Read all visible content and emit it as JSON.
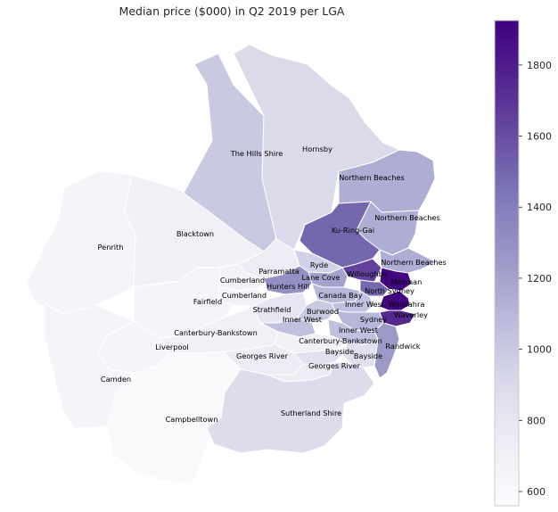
{
  "title": "Median price ($000) in Q2 2019 per LGA",
  "colorbar": {
    "min": 560,
    "max": 1925,
    "ticks": [
      "600",
      "800",
      "1000",
      "1200",
      "1400",
      "1600",
      "1800"
    ],
    "colormap": [
      "#fcfbfd",
      "#efedf5",
      "#dadaeb",
      "#bcbddc",
      "#9e9ac8",
      "#807dba",
      "#6a51a3",
      "#54278f",
      "#3f007d"
    ]
  },
  "regions": [
    {
      "name": "The Hills Shire",
      "value": 1000
    },
    {
      "name": "Hornsby",
      "value": 900
    },
    {
      "name": "Northern Beaches",
      "value": 1150
    },
    {
      "name": "Northern Beaches",
      "value": 1150
    },
    {
      "name": "Ku-Ring-Gai",
      "value": 1500
    },
    {
      "name": "Northern Beaches",
      "value": 1150
    },
    {
      "name": "Penrith",
      "value": 650
    },
    {
      "name": "Blacktown",
      "value": 700
    },
    {
      "name": "Parramatta",
      "value": 750
    },
    {
      "name": "Ryde",
      "value": 950
    },
    {
      "name": "Willoughby",
      "value": 1650
    },
    {
      "name": "Cumberland",
      "value": 680
    },
    {
      "name": "Lane Cove",
      "value": 1200
    },
    {
      "name": "Mosman",
      "value": 1900
    },
    {
      "name": "Hunters Hill",
      "value": 1300
    },
    {
      "name": "North Sydney",
      "value": 1500
    },
    {
      "name": "Cumberland",
      "value": 680
    },
    {
      "name": "Canada Bay",
      "value": 1100
    },
    {
      "name": "Fairfield",
      "value": 650
    },
    {
      "name": "Inner West",
      "value": 1050
    },
    {
      "name": "Woollahra",
      "value": 1900
    },
    {
      "name": "Strathfield",
      "value": 800
    },
    {
      "name": "Burwood",
      "value": 1000
    },
    {
      "name": "Waverley",
      "value": 1750
    },
    {
      "name": "Sydney",
      "value": 1100
    },
    {
      "name": "Inner West",
      "value": 1050
    },
    {
      "name": "Canterbury-Bankstown",
      "value": 700
    },
    {
      "name": "Inner West",
      "value": 1050
    },
    {
      "name": "Liverpool",
      "value": 650
    },
    {
      "name": "Canterbury-Bankstown",
      "value": 700
    },
    {
      "name": "Randwick",
      "value": 1250
    },
    {
      "name": "Georges River",
      "value": 750
    },
    {
      "name": "Bayside",
      "value": 850
    },
    {
      "name": "Bayside",
      "value": 850
    },
    {
      "name": "Georges River",
      "value": 750
    },
    {
      "name": "Camden",
      "value": 640
    },
    {
      "name": "Campbelltown",
      "value": 600
    },
    {
      "name": "Sutherland Shire",
      "value": 880
    }
  ]
}
